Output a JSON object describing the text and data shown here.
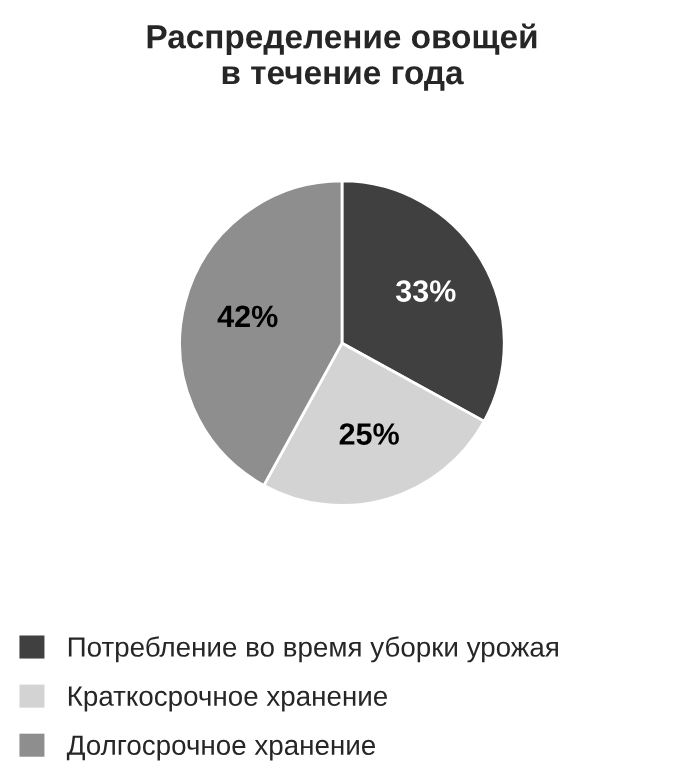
{
  "chart_data": {
    "type": "pie",
    "title": "Распределение овощей\nв течение года",
    "categories": [
      "Потребление во время уборки урожая",
      "Краткосрочное хранение",
      "Долгосрочное хранение"
    ],
    "values": [
      33,
      25,
      42
    ],
    "value_labels": [
      "33%",
      "25%",
      "42%"
    ],
    "colors": [
      "#404040",
      "#d3d3d3",
      "#8e8e8e"
    ],
    "legend": "bottom"
  }
}
